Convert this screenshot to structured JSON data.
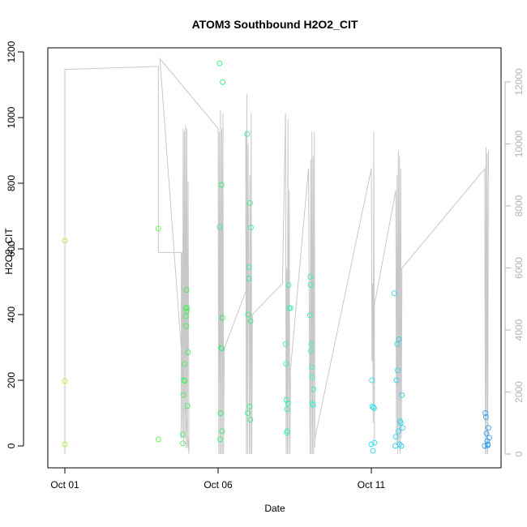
{
  "chart_data": {
    "type": "scatter",
    "title": "ATOM3 Southbound H2O2_CIT",
    "xlabel": "Date",
    "ylabel": "H2O2_CIT",
    "x_axis": {
      "min": 0,
      "max": 14.3,
      "ticks": [
        {
          "value": 0,
          "label": "Oct 01"
        },
        {
          "value": 5,
          "label": "Oct 06"
        },
        {
          "value": 10,
          "label": "Oct 11"
        }
      ]
    },
    "y_left": {
      "min": -60,
      "max": 1200,
      "ticks": [
        0,
        200,
        400,
        600,
        800,
        1000,
        1200
      ]
    },
    "y_right": {
      "min": -500,
      "max": 13000,
      "ticks": [
        0,
        2000,
        4000,
        6000,
        8000,
        10000,
        12000
      ],
      "color": "#b3b3b3"
    },
    "grid": false,
    "legend": "none",
    "series": [
      {
        "marker": "circle-open",
        "color_scale": [
          "#aaee33",
          "#33ee66",
          "#33eeee",
          "#3399ee"
        ],
        "points": [
          [
            0.0,
            625
          ],
          [
            0.0,
            198
          ],
          [
            0.0,
            5
          ],
          [
            3.05,
            662
          ],
          [
            3.05,
            20
          ],
          [
            3.85,
            35
          ],
          [
            3.85,
            8
          ],
          [
            3.87,
            155
          ],
          [
            3.88,
            200
          ],
          [
            3.9,
            250
          ],
          [
            3.92,
            198
          ],
          [
            3.94,
            420
          ],
          [
            3.95,
            395
          ],
          [
            3.96,
            365
          ],
          [
            3.97,
            475
          ],
          [
            3.98,
            410
          ],
          [
            4.0,
            122
          ],
          [
            4.02,
            285
          ],
          [
            3.99,
            420
          ],
          [
            5.05,
            1165
          ],
          [
            5.05,
            667
          ],
          [
            5.07,
            20
          ],
          [
            5.08,
            100
          ],
          [
            5.1,
            298
          ],
          [
            5.12,
            297
          ],
          [
            5.13,
            45
          ],
          [
            5.14,
            390
          ],
          [
            5.15,
            1108
          ],
          [
            5.11,
            795
          ],
          [
            5.95,
            950
          ],
          [
            5.98,
            400
          ],
          [
            6.0,
            510
          ],
          [
            6.01,
            545
          ],
          [
            6.03,
            120
          ],
          [
            6.04,
            740
          ],
          [
            6.05,
            80
          ],
          [
            6.06,
            380
          ],
          [
            6.07,
            665
          ],
          [
            5.97,
            100
          ],
          [
            7.2,
            310
          ],
          [
            7.22,
            250
          ],
          [
            7.23,
            140
          ],
          [
            7.24,
            40
          ],
          [
            7.26,
            45
          ],
          [
            7.28,
            130
          ],
          [
            7.3,
            490
          ],
          [
            7.32,
            420
          ],
          [
            7.36,
            420
          ],
          [
            7.25,
            112
          ],
          [
            8.0,
            398
          ],
          [
            8.01,
            515
          ],
          [
            8.02,
            490
          ],
          [
            8.03,
            290
          ],
          [
            8.04,
            310
          ],
          [
            8.06,
            240
          ],
          [
            8.07,
            210
          ],
          [
            8.08,
            130
          ],
          [
            8.1,
            125
          ],
          [
            8.12,
            172
          ],
          [
            10.0,
            5
          ],
          [
            10.02,
            200
          ],
          [
            10.03,
            120
          ],
          [
            10.05,
            -15
          ],
          [
            10.07,
            118
          ],
          [
            10.09,
            115
          ],
          [
            10.1,
            10
          ],
          [
            10.75,
            465
          ],
          [
            10.78,
            0
          ],
          [
            10.8,
            28
          ],
          [
            10.82,
            200
          ],
          [
            10.84,
            310
          ],
          [
            10.86,
            230
          ],
          [
            10.88,
            45
          ],
          [
            10.9,
            325
          ],
          [
            10.92,
            5
          ],
          [
            10.94,
            75
          ],
          [
            10.96,
            70
          ],
          [
            10.98,
            0
          ],
          [
            11.0,
            155
          ],
          [
            11.02,
            55
          ],
          [
            13.7,
            0
          ],
          [
            13.72,
            100
          ],
          [
            13.74,
            88
          ],
          [
            13.76,
            38
          ],
          [
            13.78,
            15
          ],
          [
            13.8,
            5
          ],
          [
            13.82,
            55
          ],
          [
            13.85,
            25
          ],
          [
            13.8,
            2
          ]
        ]
      }
    ],
    "overlay": {
      "axis": "right",
      "color": "#c8c8c8",
      "points": [
        [
          0.0,
          0
        ],
        [
          0.0,
          12400
        ],
        [
          3.05,
          12500
        ],
        [
          3.05,
          6500
        ],
        [
          3.8,
          6500
        ],
        [
          3.8,
          500
        ],
        [
          3.82,
          6500
        ],
        [
          3.84,
          500
        ],
        [
          3.86,
          10500
        ],
        [
          3.88,
          300
        ],
        [
          3.9,
          10400
        ],
        [
          3.92,
          500
        ],
        [
          3.94,
          10600
        ],
        [
          3.96,
          200
        ],
        [
          3.98,
          10500
        ],
        [
          4.0,
          200
        ],
        [
          4.02,
          8800
        ],
        [
          4.05,
          0
        ],
        [
          3.1,
          12750
        ],
        [
          5.0,
          10500
        ],
        [
          5.02,
          0
        ],
        [
          5.04,
          10400
        ],
        [
          5.06,
          0
        ],
        [
          5.08,
          11100
        ],
        [
          5.1,
          0
        ],
        [
          5.12,
          10500
        ],
        [
          5.14,
          0
        ],
        [
          5.16,
          11000
        ],
        [
          5.18,
          0
        ],
        [
          5.2,
          3400
        ],
        [
          6.0,
          5500
        ],
        [
          5.9,
          10400
        ],
        [
          5.92,
          0
        ],
        [
          5.94,
          11600
        ],
        [
          5.96,
          0
        ],
        [
          5.98,
          10000
        ],
        [
          6.02,
          0
        ],
        [
          6.04,
          9000
        ],
        [
          6.06,
          0
        ],
        [
          6.08,
          11000
        ],
        [
          6.1,
          0
        ],
        [
          6.12,
          4500
        ],
        [
          7.1,
          5500
        ],
        [
          7.2,
          11000
        ],
        [
          7.22,
          0
        ],
        [
          7.24,
          6000
        ],
        [
          7.26,
          0
        ],
        [
          7.28,
          10800
        ],
        [
          7.3,
          0
        ],
        [
          7.32,
          8500
        ],
        [
          7.34,
          0
        ],
        [
          7.36,
          2000
        ],
        [
          7.36,
          2700
        ],
        [
          7.95,
          9200
        ],
        [
          8.0,
          0
        ],
        [
          8.02,
          9500
        ],
        [
          8.04,
          0
        ],
        [
          8.06,
          10400
        ],
        [
          8.08,
          0
        ],
        [
          8.1,
          9600
        ],
        [
          8.12,
          0
        ],
        [
          8.14,
          10400
        ],
        [
          8.16,
          200
        ],
        [
          8.16,
          500
        ],
        [
          10.0,
          9200
        ],
        [
          10.02,
          3000
        ],
        [
          10.04,
          5500
        ],
        [
          10.06,
          1000
        ],
        [
          10.08,
          10400
        ],
        [
          10.1,
          300
        ],
        [
          10.1,
          4800
        ],
        [
          10.8,
          8500
        ],
        [
          10.82,
          300
        ],
        [
          10.84,
          9000
        ],
        [
          10.86,
          0
        ],
        [
          10.88,
          9800
        ],
        [
          10.9,
          200
        ],
        [
          10.92,
          9600
        ],
        [
          10.94,
          0
        ],
        [
          10.96,
          9200
        ],
        [
          10.98,
          500
        ],
        [
          11.0,
          6000
        ],
        [
          13.7,
          9200
        ],
        [
          13.72,
          0
        ],
        [
          13.74,
          9900
        ],
        [
          13.76,
          0
        ],
        [
          13.78,
          9700
        ],
        [
          13.8,
          0
        ],
        [
          13.82,
          9800
        ]
      ]
    }
  }
}
